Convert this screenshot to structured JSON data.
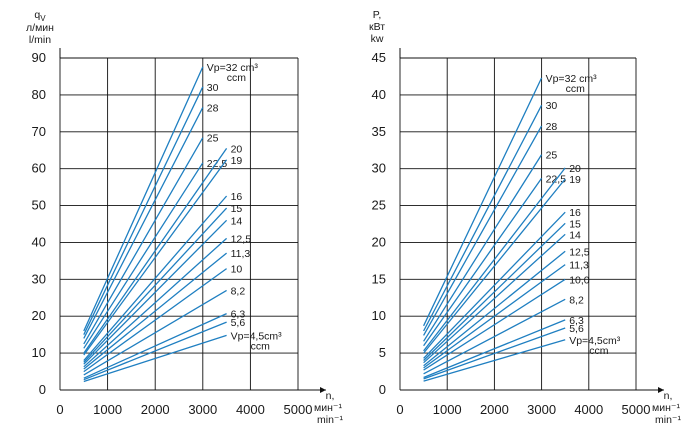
{
  "chart_data": [
    {
      "type": "line",
      "name": "flow",
      "ylabel_lines": [
        "q",
        "л/мин",
        "l/min"
      ],
      "ylabel_sub": "V",
      "xlabel_lines": [
        "n,",
        "мин⁻¹",
        "min⁻¹"
      ],
      "xlim": [
        0,
        5000
      ],
      "ylim": [
        0,
        90
      ],
      "xticks": [
        0,
        1000,
        2000,
        3000,
        4000,
        5000
      ],
      "yticks": [
        0,
        10,
        20,
        30,
        40,
        50,
        60,
        70,
        80,
        90
      ],
      "grid": true,
      "series": [
        {
          "name": "Vp=32 cm³ ccm",
          "label_lines": [
            "Vp=32 cm³",
            "ccm"
          ],
          "x": [
            500,
            3000
          ],
          "y": [
            16.0,
            87.6
          ]
        },
        {
          "name": "30",
          "x": [
            500,
            3000
          ],
          "y": [
            15.0,
            82.2
          ]
        },
        {
          "name": "28",
          "x": [
            500,
            3000
          ],
          "y": [
            14.0,
            76.6
          ]
        },
        {
          "name": "25",
          "x": [
            500,
            3000
          ],
          "y": [
            12.5,
            68.4
          ]
        },
        {
          "name": "22,5",
          "x": [
            500,
            3000
          ],
          "y": [
            11.3,
            61.6
          ]
        },
        {
          "name": "20",
          "x": [
            500,
            3500
          ],
          "y": [
            10.0,
            65.5
          ]
        },
        {
          "name": "19",
          "x": [
            500,
            3500
          ],
          "y": [
            9.5,
            62.4
          ]
        },
        {
          "name": "16",
          "x": [
            500,
            3500
          ],
          "y": [
            8.0,
            52.6
          ]
        },
        {
          "name": "15",
          "x": [
            500,
            3500
          ],
          "y": [
            7.5,
            49.3
          ]
        },
        {
          "name": "14",
          "x": [
            500,
            3500
          ],
          "y": [
            7.0,
            46.0
          ]
        },
        {
          "name": "12,5",
          "x": [
            500,
            3500
          ],
          "y": [
            6.3,
            41.1
          ]
        },
        {
          "name": "11,3",
          "x": [
            500,
            3500
          ],
          "y": [
            5.7,
            37.1
          ]
        },
        {
          "name": "10",
          "x": [
            500,
            3500
          ],
          "y": [
            5.0,
            32.9
          ]
        },
        {
          "name": "8,2",
          "x": [
            500,
            3500
          ],
          "y": [
            4.1,
            27.0
          ]
        },
        {
          "name": "6,3",
          "x": [
            500,
            3500
          ],
          "y": [
            3.2,
            20.7
          ]
        },
        {
          "name": "5,6",
          "x": [
            500,
            3500
          ],
          "y": [
            2.8,
            18.4
          ]
        },
        {
          "name": "Vp=4,5cm³ ccm",
          "label_lines": [
            "Vp=4,5cm³",
            "ccm"
          ],
          "x": [
            500,
            3500
          ],
          "y": [
            2.3,
            14.8
          ]
        }
      ]
    },
    {
      "type": "line",
      "name": "power",
      "ylabel_lines": [
        "P,",
        "кВт",
        "kw"
      ],
      "xlabel_lines": [
        "n,",
        "мин⁻¹",
        "min⁻¹"
      ],
      "xlim": [
        0,
        5000
      ],
      "ylim": [
        0,
        45
      ],
      "xticks": [
        0,
        1000,
        2000,
        3000,
        4000,
        5000
      ],
      "yticks": [
        0,
        5,
        10,
        15,
        20,
        25,
        30,
        35,
        40,
        45
      ],
      "grid": true,
      "series": [
        {
          "name": "Vp=32 cm³ ccm",
          "label_lines": [
            "Vp=32 cm³",
            "ccm"
          ],
          "x": [
            500,
            3000
          ],
          "y": [
            8.7,
            42.3
          ]
        },
        {
          "name": "30",
          "x": [
            500,
            3000
          ],
          "y": [
            8.0,
            38.6
          ]
        },
        {
          "name": "28",
          "x": [
            500,
            3000
          ],
          "y": [
            7.4,
            35.8
          ]
        },
        {
          "name": "25",
          "x": [
            500,
            3000
          ],
          "y": [
            6.6,
            31.9
          ]
        },
        {
          "name": "22,5",
          "x": [
            500,
            3000
          ],
          "y": [
            6.0,
            28.7
          ]
        },
        {
          "name": "20",
          "x": [
            500,
            3500
          ],
          "y": [
            5.3,
            30.1
          ]
        },
        {
          "name": "19",
          "x": [
            500,
            3500
          ],
          "y": [
            5.0,
            28.6
          ]
        },
        {
          "name": "16",
          "x": [
            500,
            3500
          ],
          "y": [
            4.3,
            24.1
          ]
        },
        {
          "name": "15",
          "x": [
            500,
            3500
          ],
          "y": [
            4.0,
            22.6
          ]
        },
        {
          "name": "14",
          "x": [
            500,
            3500
          ],
          "y": [
            3.7,
            21.1
          ]
        },
        {
          "name": "12,5",
          "x": [
            500,
            3500
          ],
          "y": [
            3.3,
            18.8
          ]
        },
        {
          "name": "11,3",
          "x": [
            500,
            3500
          ],
          "y": [
            3.0,
            17.0
          ]
        },
        {
          "name": "10,0",
          "x": [
            500,
            3500
          ],
          "y": [
            2.7,
            15.0
          ]
        },
        {
          "name": "8,2",
          "x": [
            500,
            3500
          ],
          "y": [
            2.2,
            12.3
          ]
        },
        {
          "name": "6,3",
          "x": [
            500,
            3500
          ],
          "y": [
            1.7,
            9.5
          ]
        },
        {
          "name": "5,6",
          "x": [
            500,
            3500
          ],
          "y": [
            1.5,
            8.4
          ]
        },
        {
          "name": "Vp=4,5cm³ ccm",
          "label_lines": [
            "Vp=4,5cm³",
            "ccm"
          ],
          "x": [
            500,
            3500
          ],
          "y": [
            1.2,
            6.8
          ]
        }
      ]
    }
  ],
  "colors": {
    "series": "#1f7fc1",
    "grid": "#111111",
    "text": "#1a1a1a"
  }
}
